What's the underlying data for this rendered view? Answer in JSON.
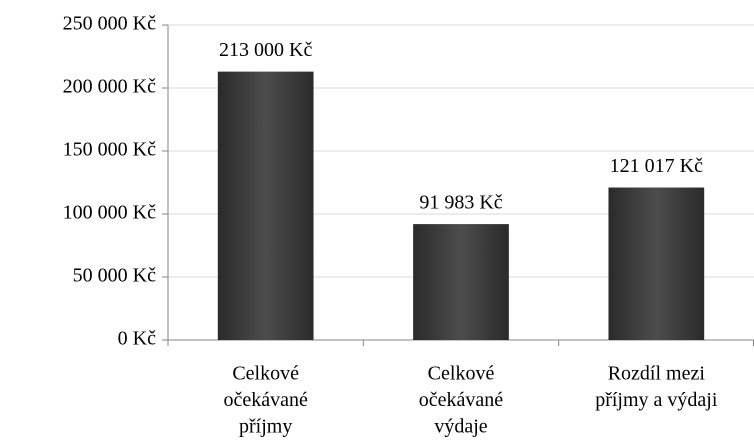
{
  "chart_data": {
    "type": "bar",
    "categories": [
      [
        "Celkové",
        "očekávané",
        "příjmy"
      ],
      [
        "Celkové",
        "očekávané",
        "výdaje"
      ],
      [
        "Rozdíl mezi",
        "příjmy a výdaji"
      ]
    ],
    "values": [
      213000,
      91983,
      121017
    ],
    "value_labels": [
      "213 000 Kč",
      "91 983 Kč",
      "121 017 Kč"
    ],
    "color": "#4d4d4d",
    "ylim": [
      0,
      250000
    ],
    "yticks": [
      {
        "value": 0,
        "label": "0 Kč"
      },
      {
        "value": 50000,
        "label": "50 000 Kč"
      },
      {
        "value": 100000,
        "label": "100 000 Kč"
      },
      {
        "value": 150000,
        "label": "150 000 Kč"
      },
      {
        "value": 200000,
        "label": "200 000 Kč"
      },
      {
        "value": 250000,
        "label": "250 000 Kč"
      }
    ],
    "grid": true
  }
}
